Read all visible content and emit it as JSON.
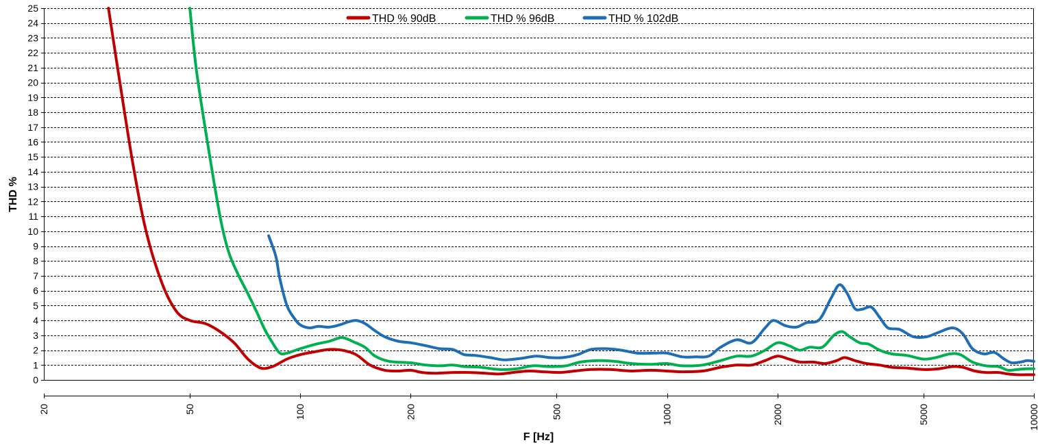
{
  "chart_data": {
    "type": "line",
    "xlabel": "F [Hz]",
    "ylabel": "THD %",
    "x_scale": "log",
    "xlim": [
      20,
      10000
    ],
    "ylim": [
      0,
      25
    ],
    "x_ticks": [
      20,
      50,
      100,
      200,
      500,
      1000,
      2000,
      5000,
      10000
    ],
    "y_ticks": [
      0,
      1,
      2,
      3,
      4,
      5,
      6,
      7,
      8,
      9,
      10,
      11,
      12,
      13,
      14,
      15,
      16,
      17,
      18,
      19,
      20,
      21,
      22,
      23,
      24,
      25
    ],
    "grid": "horizontal dashed",
    "legend_position": "top",
    "series": [
      {
        "name": "THD % 90dB",
        "color": "#C00000",
        "points": [
          [
            30,
            25
          ],
          [
            32,
            20.5
          ],
          [
            35,
            14.5
          ],
          [
            38,
            10
          ],
          [
            42,
            6.5
          ],
          [
            46,
            4.6
          ],
          [
            50,
            4.0
          ],
          [
            55,
            3.8
          ],
          [
            60,
            3.3
          ],
          [
            66,
            2.5
          ],
          [
            72,
            1.4
          ],
          [
            78,
            0.8
          ],
          [
            84,
            0.9
          ],
          [
            92,
            1.4
          ],
          [
            100,
            1.7
          ],
          [
            110,
            1.9
          ],
          [
            120,
            2.05
          ],
          [
            130,
            2.0
          ],
          [
            142,
            1.7
          ],
          [
            155,
            1.0
          ],
          [
            170,
            0.65
          ],
          [
            185,
            0.6
          ],
          [
            200,
            0.65
          ],
          [
            215,
            0.5
          ],
          [
            235,
            0.45
          ],
          [
            260,
            0.5
          ],
          [
            290,
            0.5
          ],
          [
            320,
            0.45
          ],
          [
            350,
            0.4
          ],
          [
            380,
            0.5
          ],
          [
            420,
            0.6
          ],
          [
            460,
            0.55
          ],
          [
            510,
            0.5
          ],
          [
            560,
            0.6
          ],
          [
            620,
            0.7
          ],
          [
            700,
            0.7
          ],
          [
            800,
            0.6
          ],
          [
            900,
            0.65
          ],
          [
            1000,
            0.6
          ],
          [
            1100,
            0.55
          ],
          [
            1250,
            0.6
          ],
          [
            1400,
            0.85
          ],
          [
            1550,
            1.0
          ],
          [
            1700,
            1.0
          ],
          [
            1850,
            1.3
          ],
          [
            2000,
            1.6
          ],
          [
            2150,
            1.4
          ],
          [
            2300,
            1.2
          ],
          [
            2500,
            1.2
          ],
          [
            2700,
            1.1
          ],
          [
            2900,
            1.3
          ],
          [
            3050,
            1.5
          ],
          [
            3250,
            1.3
          ],
          [
            3500,
            1.1
          ],
          [
            3800,
            1.0
          ],
          [
            4100,
            0.85
          ],
          [
            4500,
            0.8
          ],
          [
            5000,
            0.7
          ],
          [
            5500,
            0.75
          ],
          [
            6000,
            0.9
          ],
          [
            6400,
            0.85
          ],
          [
            6900,
            0.6
          ],
          [
            7400,
            0.5
          ],
          [
            8000,
            0.5
          ],
          [
            8500,
            0.4
          ],
          [
            9000,
            0.35
          ],
          [
            9500,
            0.35
          ],
          [
            10000,
            0.35
          ]
        ]
      },
      {
        "name": "THD % 96dB",
        "color": "#00B050",
        "points": [
          [
            50,
            25
          ],
          [
            52,
            21
          ],
          [
            55,
            17
          ],
          [
            58,
            13.5
          ],
          [
            61,
            10.5
          ],
          [
            64,
            8.5
          ],
          [
            68,
            7.0
          ],
          [
            72,
            5.8
          ],
          [
            76,
            4.6
          ],
          [
            80,
            3.4
          ],
          [
            84,
            2.5
          ],
          [
            88,
            1.8
          ],
          [
            92,
            1.8
          ],
          [
            100,
            2.1
          ],
          [
            110,
            2.4
          ],
          [
            120,
            2.6
          ],
          [
            130,
            2.85
          ],
          [
            140,
            2.55
          ],
          [
            150,
            2.2
          ],
          [
            160,
            1.6
          ],
          [
            175,
            1.25
          ],
          [
            200,
            1.15
          ],
          [
            220,
            1.0
          ],
          [
            240,
            0.95
          ],
          [
            260,
            1.0
          ],
          [
            280,
            0.9
          ],
          [
            310,
            0.85
          ],
          [
            350,
            0.7
          ],
          [
            390,
            0.75
          ],
          [
            430,
            0.95
          ],
          [
            480,
            0.9
          ],
          [
            530,
            0.95
          ],
          [
            580,
            1.2
          ],
          [
            650,
            1.3
          ],
          [
            720,
            1.25
          ],
          [
            800,
            1.1
          ],
          [
            900,
            1.05
          ],
          [
            1000,
            1.1
          ],
          [
            1100,
            0.95
          ],
          [
            1250,
            1.0
          ],
          [
            1400,
            1.3
          ],
          [
            1550,
            1.6
          ],
          [
            1700,
            1.6
          ],
          [
            1850,
            2.0
          ],
          [
            2000,
            2.5
          ],
          [
            2150,
            2.3
          ],
          [
            2300,
            2.0
          ],
          [
            2450,
            2.2
          ],
          [
            2650,
            2.2
          ],
          [
            2850,
            3.0
          ],
          [
            3000,
            3.25
          ],
          [
            3150,
            2.9
          ],
          [
            3350,
            2.5
          ],
          [
            3550,
            2.4
          ],
          [
            3800,
            2.0
          ],
          [
            4100,
            1.75
          ],
          [
            4500,
            1.65
          ],
          [
            5000,
            1.4
          ],
          [
            5400,
            1.5
          ],
          [
            5900,
            1.75
          ],
          [
            6300,
            1.7
          ],
          [
            6800,
            1.2
          ],
          [
            7400,
            0.95
          ],
          [
            8000,
            0.9
          ],
          [
            8500,
            0.65
          ],
          [
            9000,
            0.7
          ],
          [
            9500,
            0.75
          ],
          [
            10000,
            0.75
          ]
        ]
      },
      {
        "name": "THD % 102dB",
        "color": "#1F6EB5",
        "points": [
          [
            82,
            9.7
          ],
          [
            84,
            9.0
          ],
          [
            86,
            8.2
          ],
          [
            88,
            6.8
          ],
          [
            92,
            5.0
          ],
          [
            96,
            4.2
          ],
          [
            100,
            3.7
          ],
          [
            106,
            3.5
          ],
          [
            112,
            3.6
          ],
          [
            120,
            3.55
          ],
          [
            128,
            3.7
          ],
          [
            135,
            3.9
          ],
          [
            142,
            4.0
          ],
          [
            150,
            3.8
          ],
          [
            160,
            3.3
          ],
          [
            170,
            2.9
          ],
          [
            185,
            2.6
          ],
          [
            200,
            2.5
          ],
          [
            220,
            2.3
          ],
          [
            240,
            2.1
          ],
          [
            260,
            2.05
          ],
          [
            280,
            1.7
          ],
          [
            300,
            1.65
          ],
          [
            330,
            1.5
          ],
          [
            360,
            1.35
          ],
          [
            400,
            1.45
          ],
          [
            440,
            1.6
          ],
          [
            480,
            1.5
          ],
          [
            520,
            1.5
          ],
          [
            570,
            1.7
          ],
          [
            620,
            2.05
          ],
          [
            680,
            2.1
          ],
          [
            750,
            2.0
          ],
          [
            830,
            1.8
          ],
          [
            920,
            1.8
          ],
          [
            1000,
            1.8
          ],
          [
            1100,
            1.55
          ],
          [
            1200,
            1.55
          ],
          [
            1300,
            1.6
          ],
          [
            1400,
            2.2
          ],
          [
            1550,
            2.7
          ],
          [
            1700,
            2.5
          ],
          [
            1850,
            3.5
          ],
          [
            1950,
            4.0
          ],
          [
            2100,
            3.65
          ],
          [
            2250,
            3.55
          ],
          [
            2400,
            3.85
          ],
          [
            2600,
            4.05
          ],
          [
            2800,
            5.5
          ],
          [
            2950,
            6.4
          ],
          [
            3100,
            5.8
          ],
          [
            3250,
            4.8
          ],
          [
            3400,
            4.75
          ],
          [
            3600,
            4.9
          ],
          [
            3800,
            4.2
          ],
          [
            4000,
            3.5
          ],
          [
            4300,
            3.4
          ],
          [
            4700,
            2.9
          ],
          [
            5100,
            2.9
          ],
          [
            5500,
            3.2
          ],
          [
            6000,
            3.5
          ],
          [
            6400,
            3.1
          ],
          [
            6800,
            2.1
          ],
          [
            7300,
            1.75
          ],
          [
            7800,
            1.85
          ],
          [
            8300,
            1.4
          ],
          [
            8700,
            1.15
          ],
          [
            9200,
            1.2
          ],
          [
            9600,
            1.3
          ],
          [
            10000,
            1.25
          ]
        ]
      }
    ]
  }
}
